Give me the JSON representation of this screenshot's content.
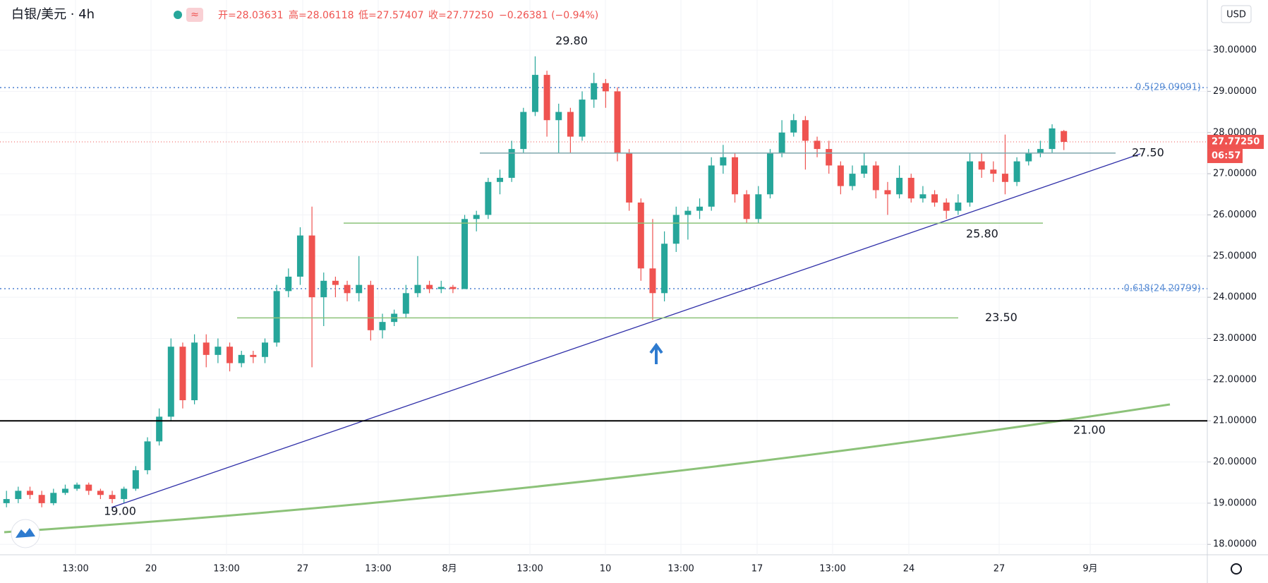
{
  "header": {
    "symbol": "白银/美元 · 4h",
    "open": "开=28.03631",
    "high": "高=28.06118",
    "low": "低=27.57407",
    "close": "收=27.77250",
    "change": "−0.26381 (−0.94%)"
  },
  "chart_data": {
    "type": "candlestick",
    "open": [
      19.0,
      19.1,
      19.3,
      19.2,
      19.0,
      19.25,
      19.35,
      19.45,
      19.3,
      19.2,
      19.1,
      19.35,
      19.8,
      20.5,
      21.1,
      22.8,
      21.5,
      22.9,
      22.6,
      22.8,
      22.4,
      22.6,
      22.55,
      22.9,
      24.15,
      24.5,
      25.5,
      24.0,
      24.4,
      24.3,
      24.1,
      24.3,
      23.2,
      23.4,
      23.6,
      24.1,
      24.3,
      24.2,
      24.25,
      24.2,
      25.9,
      26.0,
      26.8,
      26.9,
      27.6,
      28.5,
      29.4,
      28.3,
      28.5,
      27.9,
      28.8,
      29.2,
      29.0,
      27.5,
      26.3,
      24.7,
      24.1,
      25.3,
      26.0,
      26.1,
      26.2,
      27.2,
      27.4,
      26.5,
      25.9,
      26.5,
      27.5,
      28.0,
      28.3,
      27.8,
      27.6,
      27.2,
      26.7,
      27.0,
      27.2,
      26.6,
      26.5,
      26.9,
      26.4,
      26.5,
      26.3,
      26.1,
      26.3,
      27.3,
      27.1,
      27.0,
      26.8,
      27.3,
      27.5,
      27.6,
      28.03631
    ],
    "high": [
      19.3,
      19.4,
      19.4,
      19.3,
      19.35,
      19.45,
      19.5,
      19.5,
      19.35,
      19.3,
      19.4,
      19.9,
      20.6,
      21.3,
      23.0,
      22.9,
      23.1,
      23.1,
      23.0,
      22.9,
      22.7,
      22.7,
      23.0,
      24.3,
      24.7,
      25.7,
      26.2,
      24.6,
      24.5,
      24.4,
      25.0,
      24.4,
      23.6,
      23.7,
      24.3,
      25.0,
      24.4,
      24.4,
      24.3,
      26.0,
      26.1,
      26.9,
      27.1,
      27.8,
      28.6,
      29.85,
      29.5,
      28.7,
      28.6,
      29.0,
      29.45,
      29.3,
      29.1,
      27.6,
      26.4,
      25.9,
      25.6,
      26.2,
      26.2,
      26.4,
      27.4,
      27.7,
      27.5,
      26.6,
      26.7,
      27.6,
      28.3,
      28.45,
      28.4,
      27.9,
      27.8,
      27.3,
      27.2,
      27.5,
      27.3,
      26.8,
      27.2,
      27.0,
      26.7,
      26.6,
      26.4,
      26.5,
      27.5,
      27.5,
      27.3,
      27.95,
      27.4,
      27.6,
      27.8,
      28.2,
      28.06118
    ],
    "low": [
      18.9,
      19.0,
      19.1,
      18.9,
      18.95,
      19.2,
      19.3,
      19.2,
      19.1,
      19.0,
      19.0,
      19.3,
      19.7,
      20.4,
      21.0,
      21.3,
      21.4,
      22.3,
      22.4,
      22.2,
      22.3,
      22.4,
      22.4,
      22.8,
      24.0,
      24.3,
      22.3,
      23.3,
      24.0,
      23.9,
      23.9,
      22.95,
      23.0,
      23.3,
      23.5,
      24.0,
      24.1,
      24.1,
      24.1,
      24.2,
      25.6,
      25.9,
      26.5,
      26.8,
      27.5,
      28.4,
      27.9,
      27.5,
      27.5,
      27.8,
      28.6,
      28.6,
      27.3,
      26.1,
      24.4,
      23.45,
      23.9,
      25.1,
      25.4,
      25.9,
      26.1,
      27.0,
      26.3,
      25.8,
      25.8,
      26.4,
      27.4,
      27.9,
      27.1,
      27.4,
      27.0,
      26.5,
      26.6,
      26.9,
      26.4,
      26.0,
      26.4,
      26.3,
      26.3,
      26.2,
      25.9,
      26.0,
      26.2,
      26.9,
      26.8,
      26.5,
      26.7,
      27.2,
      27.4,
      27.5,
      27.57407
    ],
    "close": [
      19.1,
      19.3,
      19.2,
      19.0,
      19.25,
      19.35,
      19.45,
      19.3,
      19.2,
      19.1,
      19.35,
      19.8,
      20.5,
      21.1,
      22.8,
      21.5,
      22.9,
      22.6,
      22.8,
      22.4,
      22.6,
      22.55,
      22.9,
      24.15,
      24.5,
      25.5,
      24.0,
      24.4,
      24.3,
      24.1,
      24.3,
      23.2,
      23.4,
      23.6,
      24.1,
      24.3,
      24.2,
      24.25,
      24.2,
      25.9,
      26.0,
      26.8,
      26.9,
      27.6,
      28.5,
      29.4,
      28.3,
      28.5,
      27.9,
      28.8,
      29.2,
      29.0,
      27.5,
      26.3,
      24.7,
      24.1,
      25.3,
      26.0,
      26.1,
      26.2,
      27.2,
      27.4,
      26.5,
      25.9,
      26.5,
      27.5,
      28.0,
      28.3,
      27.8,
      27.6,
      27.2,
      26.7,
      27.0,
      27.2,
      26.6,
      26.5,
      26.9,
      26.4,
      26.5,
      26.3,
      26.1,
      26.3,
      27.3,
      27.1,
      27.0,
      26.8,
      27.3,
      27.5,
      27.6,
      28.1,
      27.7725
    ],
    "colors": {
      "up": "#26a69a",
      "down": "#ef5350"
    },
    "ylim": [
      17.747,
      31.218
    ],
    "yticks": [
      {
        "value": 18,
        "label": "18.00000"
      },
      {
        "value": 19,
        "label": "19.00000"
      },
      {
        "value": 20,
        "label": "20.00000"
      },
      {
        "value": 21,
        "label": "21.00000"
      },
      {
        "value": 22,
        "label": "22.00000"
      },
      {
        "value": 23,
        "label": "23.00000"
      },
      {
        "value": 24,
        "label": "24.00000"
      },
      {
        "value": 25,
        "label": "25.00000"
      },
      {
        "value": 26,
        "label": "26.00000"
      },
      {
        "value": 27,
        "label": "27.00000"
      },
      {
        "value": 28,
        "label": "28.00000"
      },
      {
        "value": 29,
        "label": "29.00000"
      },
      {
        "value": 30,
        "label": "30.00000"
      }
    ],
    "grid": true,
    "x_labels": [
      "13:00",
      "20",
      "13:00",
      "27",
      "13:00",
      "8月",
      "13:00",
      "10",
      "13:00",
      "17",
      "13:00",
      "24",
      "27",
      "9月"
    ],
    "currency": "USD",
    "last_price": {
      "value": 27.7725,
      "label": "27.77250"
    },
    "countdown": "06:57",
    "levels": [
      {
        "label": "27.50",
        "value": 27.5,
        "color": "#7fa8ad"
      },
      {
        "label": "25.80",
        "value": 25.8,
        "color": "#8cc279"
      },
      {
        "label": "23.50",
        "value": 23.5,
        "color": "#8cc279"
      },
      {
        "label": "21.00",
        "value": 21.0,
        "color": "#000000"
      }
    ],
    "fib_levels": [
      {
        "label": "0.5(29.09091)",
        "value": 29.09091
      },
      {
        "label": "0.618(24.20799)",
        "value": 24.20799
      }
    ],
    "point_labels": [
      {
        "label": "29.80",
        "value": 29.8
      },
      {
        "label": "19.00",
        "value": 19.0
      }
    ]
  }
}
